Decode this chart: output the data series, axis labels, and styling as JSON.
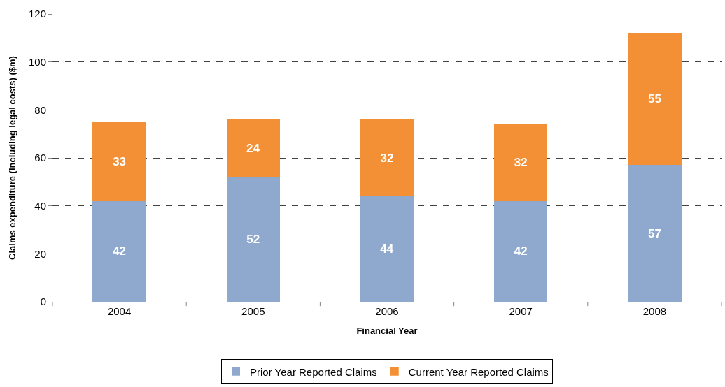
{
  "chart_data": {
    "type": "bar",
    "xlabel": "Financial Year",
    "ylabel": "Claims expenditure (including legal costs) ($m)",
    "categories": [
      "2004",
      "2005",
      "2006",
      "2007",
      "2008"
    ],
    "series": [
      {
        "name": "Prior Year Reported Claims",
        "color": "#8ea9cd",
        "values": [
          42,
          52,
          44,
          42,
          57
        ]
      },
      {
        "name": "Current Year Reported Claims",
        "color": "#f39035",
        "values": [
          33,
          24,
          32,
          32,
          55
        ]
      }
    ],
    "stacked": true,
    "data_labels": true,
    "ylim": [
      0,
      120
    ],
    "yticks": [
      0,
      20,
      40,
      60,
      80,
      100,
      120
    ],
    "grid": "y",
    "legend": "bottom"
  }
}
